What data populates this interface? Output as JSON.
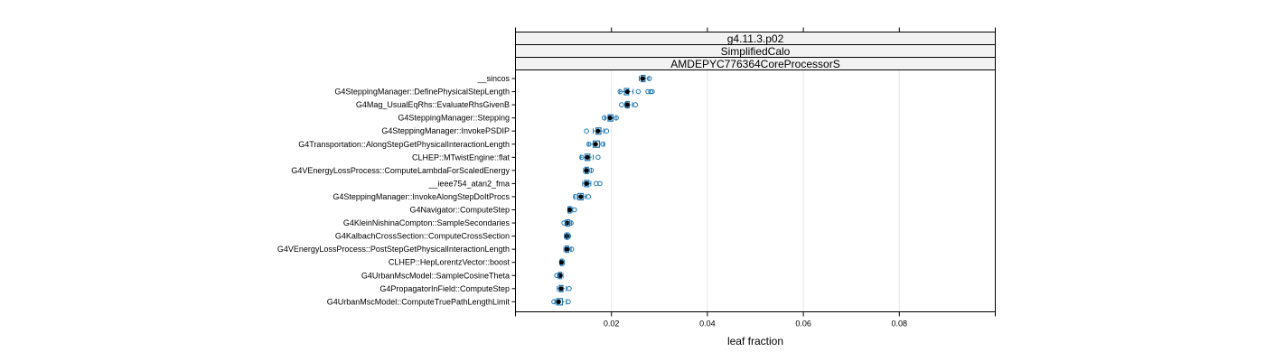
{
  "chart_data": {
    "type": "boxplot",
    "panel_strips": [
      "g4.11.3.p02",
      "SimplifiedCalo",
      "AMDEPYC776364CoreProcessorS"
    ],
    "xlabel": "leaf fraction",
    "xlim": [
      0.0,
      0.1
    ],
    "x_ticks": [
      0.02,
      0.04,
      0.06,
      0.08
    ],
    "x_tick_labels": [
      "0.02",
      "0.04",
      "0.06",
      "0.08"
    ],
    "grid": true,
    "colors": {
      "box": "#1f78b4",
      "median": "#000000",
      "strip": "#f2f2f2",
      "grid": "#e6e6e6"
    },
    "categories": [
      "__sincos",
      "G4SteppingManager::DefinePhysicalStepLength",
      "G4Mag_UsualEqRhs::EvaluateRhsGivenB",
      "G4SteppingManager::Stepping",
      "G4SteppingManager::InvokePSDIP",
      "G4Transportation::AlongStepGetPhysicalInteractionLength",
      "CLHEP::MTwistEngine::flat",
      "G4VEnergyLossProcess::ComputeLambdaForScaledEnergy",
      "__ieee754_atan2_fma",
      "G4SteppingManager::InvokeAlongStepDoItProcs",
      "G4Navigator::ComputeStep",
      "G4KleinNishinaCompton::SampleSecondaries",
      "G4KalbachCrossSection::ComputeCrossSection",
      "G4VEnergyLossProcess::PostStepGetPhysicalInteractionLength",
      "CLHEP::HepLorentzVector::boost",
      "G4UrbanMscModel::SampleCosineTheta",
      "G4PropagatorInField::ComputeStep",
      "G4UrbanMscModel::ComputeTruePathLengthLimit"
    ],
    "boxes": [
      {
        "whisker_low": 0.0258,
        "q1": 0.0262,
        "median": 0.0265,
        "q3": 0.027,
        "whisker_high": 0.0278,
        "outliers": [
          0.0279
        ]
      },
      {
        "whisker_low": 0.0217,
        "q1": 0.0227,
        "median": 0.0233,
        "q3": 0.0236,
        "whisker_high": 0.0245,
        "outliers": [
          0.0218,
          0.0256,
          0.0276,
          0.0282,
          0.0285
        ]
      },
      {
        "whisker_low": 0.0228,
        "q1": 0.023,
        "median": 0.0233,
        "q3": 0.0237,
        "whisker_high": 0.0244,
        "outliers": [
          0.0221,
          0.025
        ]
      },
      {
        "whisker_low": 0.0186,
        "q1": 0.0193,
        "median": 0.0197,
        "q3": 0.0203,
        "whisker_high": 0.021,
        "outliers": [
          0.0185,
          0.021
        ]
      },
      {
        "whisker_low": 0.0162,
        "q1": 0.0168,
        "median": 0.0172,
        "q3": 0.0178,
        "whisker_high": 0.0184,
        "outliers": [
          0.0148,
          0.019
        ]
      },
      {
        "whisker_low": 0.0152,
        "q1": 0.0162,
        "median": 0.0167,
        "q3": 0.0175,
        "whisker_high": 0.0185,
        "outliers": [
          0.0153,
          0.0182
        ]
      },
      {
        "whisker_low": 0.0136,
        "q1": 0.0145,
        "median": 0.015,
        "q3": 0.0155,
        "whisker_high": 0.0162,
        "outliers": [
          0.0138,
          0.0172
        ]
      },
      {
        "whisker_low": 0.0142,
        "q1": 0.0145,
        "median": 0.0148,
        "q3": 0.0152,
        "whisker_high": 0.0158,
        "outliers": [
          0.0158
        ]
      },
      {
        "whisker_low": 0.014,
        "q1": 0.0144,
        "median": 0.0148,
        "q3": 0.0153,
        "whisker_high": 0.0157,
        "outliers": [
          0.0168,
          0.0176
        ]
      },
      {
        "whisker_low": 0.0122,
        "q1": 0.013,
        "median": 0.0136,
        "q3": 0.0141,
        "whisker_high": 0.0146,
        "outliers": [
          0.0125,
          0.0152
        ]
      },
      {
        "whisker_low": 0.0109,
        "q1": 0.011,
        "median": 0.0113,
        "q3": 0.0116,
        "whisker_high": 0.0119,
        "outliers": [
          0.0123
        ]
      },
      {
        "whisker_low": 0.0103,
        "q1": 0.0105,
        "median": 0.0108,
        "q3": 0.0113,
        "whisker_high": 0.0117,
        "outliers": [
          0.0101,
          0.0116
        ]
      },
      {
        "whisker_low": 0.0102,
        "q1": 0.0105,
        "median": 0.0107,
        "q3": 0.011,
        "whisker_high": 0.0113,
        "outliers": [
          0.0111
        ]
      },
      {
        "whisker_low": 0.0101,
        "q1": 0.0104,
        "median": 0.0107,
        "q3": 0.0111,
        "whisker_high": 0.0116,
        "outliers": [
          0.0117
        ]
      },
      {
        "whisker_low": 0.0092,
        "q1": 0.0094,
        "median": 0.0096,
        "q3": 0.0099,
        "whisker_high": 0.0102,
        "outliers": []
      },
      {
        "whisker_low": 0.0088,
        "q1": 0.009,
        "median": 0.0093,
        "q3": 0.0096,
        "whisker_high": 0.0099,
        "outliers": [
          0.0086
        ]
      },
      {
        "whisker_low": 0.0087,
        "q1": 0.0091,
        "median": 0.0095,
        "q3": 0.0099,
        "whisker_high": 0.0106,
        "outliers": [
          0.0112
        ]
      },
      {
        "whisker_low": 0.0082,
        "q1": 0.0086,
        "median": 0.009,
        "q3": 0.0098,
        "whisker_high": 0.0106,
        "outliers": [
          0.008,
          0.011
        ]
      }
    ]
  }
}
